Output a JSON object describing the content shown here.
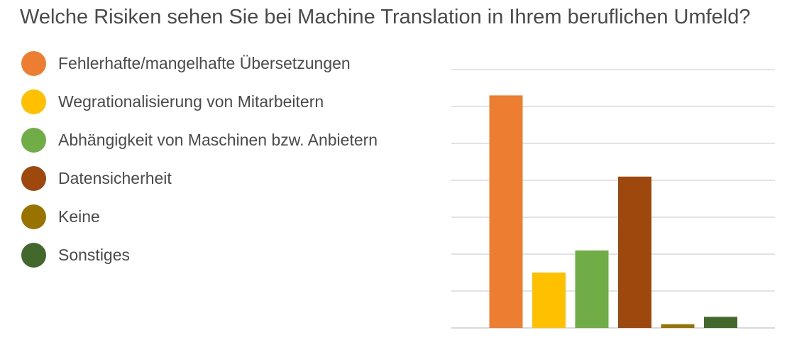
{
  "chart_data": {
    "type": "bar",
    "title": "Welche Risiken sehen Sie bei Machine Translation in Ihrem beruflichen Umfeld?",
    "xlabel": "",
    "ylabel": "",
    "ylim": [
      0,
      7
    ],
    "grid": true,
    "legend_position": "left",
    "categories": [
      "Fehlerhafte/mangelhafte Übersetzungen",
      "Wegrationalisierung von Mitarbeitern",
      "Abhängigkeit von Maschinen bzw. Anbietern",
      "Datensicherheit",
      "Keine",
      "Sonstiges"
    ],
    "values": [
      6.3,
      1.5,
      2.1,
      4.1,
      0.1,
      0.3
    ],
    "colors": [
      "#ED7D31",
      "#FFC000",
      "#70AD47",
      "#9E480E",
      "#997300",
      "#43682B"
    ]
  }
}
